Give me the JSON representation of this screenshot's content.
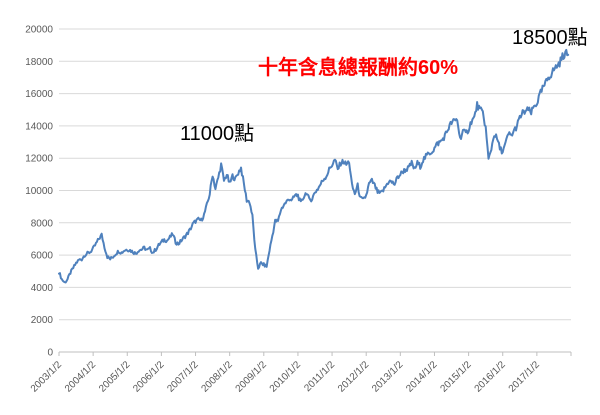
{
  "chart_data": {
    "type": "line",
    "title": "",
    "xlabel": "",
    "ylabel": "",
    "legend": "none",
    "grid": "horizontal",
    "ylim": [
      0,
      20000
    ],
    "y_tick_step": 2000,
    "y_tick_labels": [
      "0",
      "2000",
      "4000",
      "6000",
      "8000",
      "10000",
      "12000",
      "14000",
      "16000",
      "18000",
      "20000"
    ],
    "x_tick_labels": [
      "2003/1/2",
      "2004/1/2",
      "2005/1/2",
      "2006/1/2",
      "2007/1/2",
      "2008/1/2",
      "2009/1/2",
      "2010/1/2",
      "2011/1/2",
      "2012/1/2",
      "2013/1/2",
      "2014/1/2",
      "2015/1/2",
      "2016/1/2",
      "2017/1/2"
    ],
    "x_span_years": 15,
    "series": [
      {
        "interval": "monthly",
        "start": "2003-01",
        "end": "2017-12",
        "values": [
          4950,
          4500,
          4300,
          4500,
          4900,
          5200,
          5500,
          5700,
          5750,
          6000,
          6100,
          6200,
          6400,
          6700,
          7000,
          7250,
          6500,
          5900,
          5750,
          5900,
          6100,
          6250,
          6150,
          6300,
          6350,
          6300,
          6200,
          6100,
          6300,
          6350,
          6450,
          6300,
          6400,
          6150,
          6350,
          6600,
          6800,
          6950,
          6900,
          7100,
          7300,
          6800,
          6700,
          6900,
          7100,
          7300,
          7550,
          7900,
          8100,
          8200,
          8150,
          8500,
          9100,
          9800,
          11000,
          10100,
          10800,
          11600,
          10600,
          11000,
          10400,
          10900,
          10700,
          11100,
          11400,
          10400,
          9400,
          9300,
          8400,
          6300,
          5200,
          5500,
          5400,
          5300,
          6300,
          7200,
          8100,
          8100,
          8800,
          9100,
          9300,
          9500,
          9400,
          9700,
          9700,
          9200,
          9600,
          9900,
          9400,
          9500,
          9900,
          10100,
          10400,
          10700,
          10900,
          11300,
          11600,
          11900,
          11300,
          11700,
          11800,
          11600,
          11800,
          10300,
          9800,
          10300,
          9500,
          9400,
          9700,
          10400,
          10600,
          10300,
          9900,
          9800,
          10000,
          10300,
          10600,
          10500,
          10400,
          10800,
          11000,
          11200,
          11300,
          11400,
          11700,
          11300,
          11700,
          11500,
          11900,
          12100,
          12300,
          12400,
          12600,
          12900,
          13000,
          13200,
          13500,
          13900,
          14200,
          14300,
          14400,
          13200,
          13700,
          13500,
          13800,
          14300,
          14500,
          15300,
          15000,
          14800,
          13900,
          11900,
          12600,
          13500,
          13200,
          12600,
          12400,
          12900,
          13500,
          13400,
          13700,
          14000,
          14500,
          14800,
          14900,
          15000,
          14800,
          15200,
          15400,
          15900,
          16300,
          16600,
          17000,
          17200,
          17500,
          17700,
          17900,
          18300,
          18500,
          18400
        ]
      }
    ],
    "annotations": [
      {
        "id": "peak2007",
        "text": "11000點",
        "color": "#000000"
      },
      {
        "id": "level2017",
        "text": "18500點",
        "color": "#000000"
      },
      {
        "id": "total_return",
        "text": "十年含息總報酬約60%",
        "color": "#FF0000"
      }
    ],
    "colors": {
      "line": "#4F81BD",
      "gridline": "#D9D9D9",
      "axis": "#BFBFBF",
      "tick_label": "#595959"
    }
  }
}
